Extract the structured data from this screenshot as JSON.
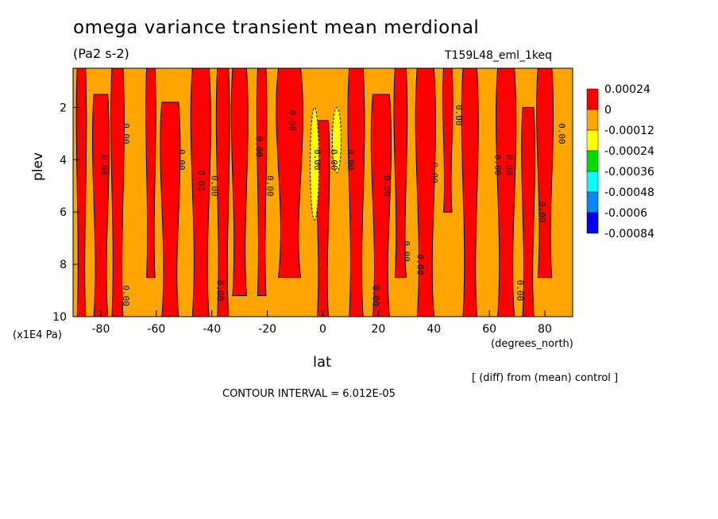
{
  "chart_data": {
    "type": "heatmap",
    "title": "omega variance transient mean merdional",
    "units": "(Pa2 s-2)",
    "run_id": "T159L48_eml_1keq",
    "xlabel": "lat",
    "x_units": "(degrees_north)",
    "ylabel": "plev",
    "y_units": "(x1E4 Pa)",
    "xlim": [
      -90,
      90
    ],
    "ylim": [
      10,
      0.5
    ],
    "x_ticks": [
      "-80",
      "-60",
      "-40",
      "-20",
      "0",
      "20",
      "40",
      "60",
      "80"
    ],
    "y_ticks": [
      "2",
      "4",
      "6",
      "8",
      "10"
    ],
    "footnote": "[ (diff) from (mean) control ]",
    "contour_interval": "CONTOUR INTERVAL = 6.012E-05",
    "contour_label": "0.00",
    "colorbar": {
      "labels": [
        "0.00024",
        "0",
        "-0.00012",
        "-0.00024",
        "-0.00036",
        "-0.00048",
        "-0.0006",
        "-0.00084"
      ],
      "colors": [
        "#ff0000",
        "#ffa500",
        "#ffff00",
        "#00dd00",
        "#00ffff",
        "#0088ff",
        "#0000ff"
      ]
    },
    "positive_bands": [
      {
        "lat": -87,
        "p_top": 0.5,
        "p_bot": 10,
        "width": 3
      },
      {
        "lat": -80,
        "p_top": 1.5,
        "p_bot": 10,
        "width": 5
      },
      {
        "lat": -74,
        "p_top": 0.5,
        "p_bot": 10,
        "width": 4
      },
      {
        "lat": -62,
        "p_top": 0.5,
        "p_bot": 8.5,
        "width": 3
      },
      {
        "lat": -55,
        "p_top": 1.8,
        "p_bot": 10,
        "width": 6
      },
      {
        "lat": -44,
        "p_top": 0.5,
        "p_bot": 10,
        "width": 6
      },
      {
        "lat": -36,
        "p_top": 0.5,
        "p_bot": 10,
        "width": 4
      },
      {
        "lat": -30,
        "p_top": 0.5,
        "p_bot": 9.2,
        "width": 5
      },
      {
        "lat": -22,
        "p_top": 0.5,
        "p_bot": 9.2,
        "width": 3
      },
      {
        "lat": -12,
        "p_top": 0.5,
        "p_bot": 8.5,
        "width": 8
      },
      {
        "lat": 0,
        "p_top": 2.5,
        "p_bot": 10,
        "width": 4
      },
      {
        "lat": 12,
        "p_top": 0.5,
        "p_bot": 10,
        "width": 5
      },
      {
        "lat": 21,
        "p_top": 1.5,
        "p_bot": 10,
        "width": 6
      },
      {
        "lat": 28,
        "p_top": 0.5,
        "p_bot": 8.5,
        "width": 4
      },
      {
        "lat": 37,
        "p_top": 0.5,
        "p_bot": 10,
        "width": 6
      },
      {
        "lat": 45,
        "p_top": 0.5,
        "p_bot": 6,
        "width": 3
      },
      {
        "lat": 53,
        "p_top": 0.5,
        "p_bot": 10,
        "width": 5
      },
      {
        "lat": 66,
        "p_top": 0.5,
        "p_bot": 10,
        "width": 6
      },
      {
        "lat": 74,
        "p_top": 2,
        "p_bot": 10,
        "width": 4
      },
      {
        "lat": 80,
        "p_top": 0.5,
        "p_bot": 8.5,
        "width": 5
      }
    ],
    "negative_patches": [
      {
        "lat": -3,
        "p_top": 2,
        "p_bot": 6.3,
        "width": 2,
        "level": "-0.00012"
      },
      {
        "lat": 5,
        "p_top": 2,
        "p_bot": 4.5,
        "width": 2,
        "level": "-0.00012"
      }
    ]
  }
}
